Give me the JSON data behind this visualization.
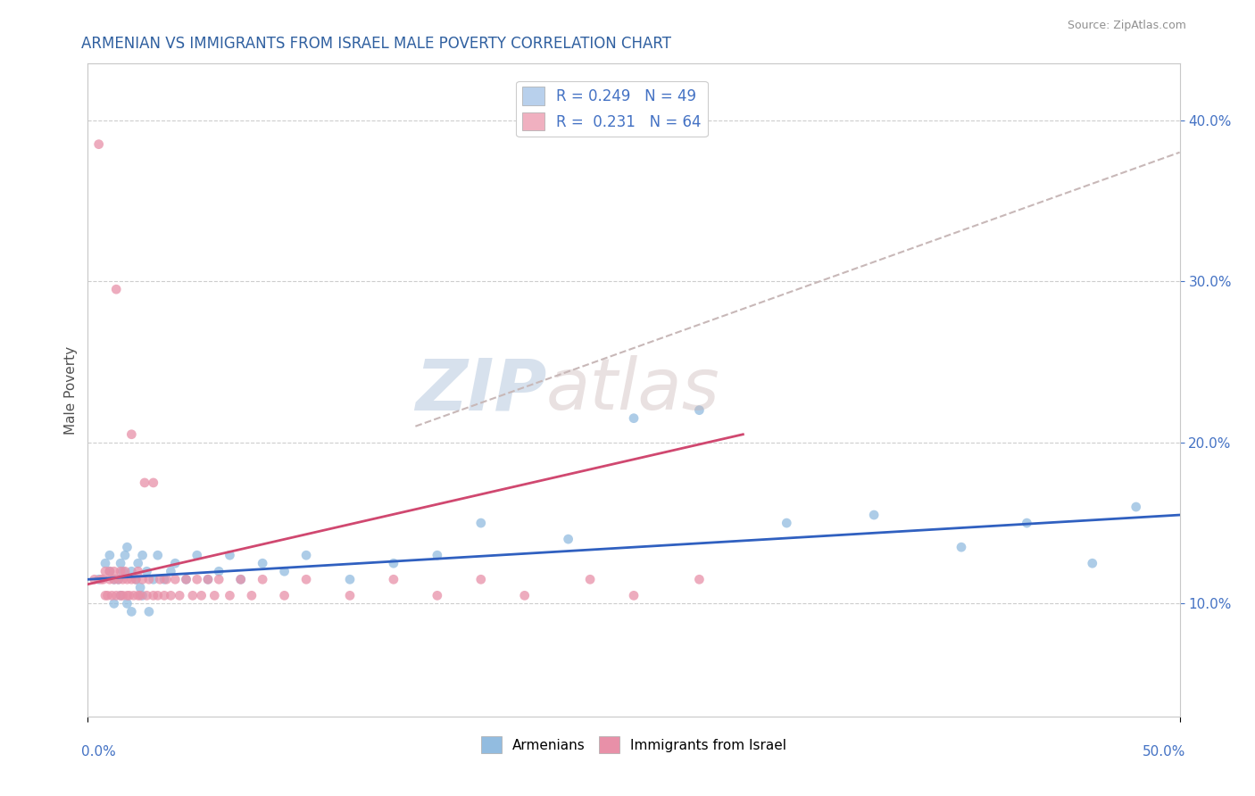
{
  "title": "ARMENIAN VS IMMIGRANTS FROM ISRAEL MALE POVERTY CORRELATION CHART",
  "source": "Source: ZipAtlas.com",
  "ylabel": "Male Poverty",
  "xmin": 0.0,
  "xmax": 0.5,
  "ymin": 0.03,
  "ymax": 0.435,
  "yticks": [
    0.1,
    0.2,
    0.3,
    0.4
  ],
  "legend_label_armenians": "Armenians",
  "legend_label_israel": "Immigrants from Israel",
  "scatter_armenians_color": "#92bce0",
  "scatter_israel_color": "#e890a8",
  "trendline_armenians_color": "#3060c0",
  "trendline_israel_color": "#d04870",
  "trendline_dashed_color": "#c8b8b8",
  "grid_color": "#c8c8c8",
  "background_color": "#ffffff",
  "title_color": "#3060a0",
  "legend_box_color_armenians": "#b8d0ec",
  "legend_box_color_israel": "#f0b0c0",
  "armenians_x": [
    0.005,
    0.008,
    0.01,
    0.01,
    0.012,
    0.012,
    0.014,
    0.015,
    0.015,
    0.016,
    0.017,
    0.018,
    0.018,
    0.02,
    0.02,
    0.022,
    0.023,
    0.024,
    0.025,
    0.025,
    0.027,
    0.028,
    0.03,
    0.032,
    0.035,
    0.038,
    0.04,
    0.045,
    0.05,
    0.055,
    0.06,
    0.065,
    0.07,
    0.08,
    0.09,
    0.1,
    0.12,
    0.14,
    0.16,
    0.18,
    0.22,
    0.25,
    0.28,
    0.32,
    0.36,
    0.4,
    0.43,
    0.46,
    0.48
  ],
  "armenians_y": [
    0.115,
    0.125,
    0.12,
    0.13,
    0.115,
    0.1,
    0.115,
    0.105,
    0.125,
    0.12,
    0.13,
    0.1,
    0.135,
    0.12,
    0.095,
    0.115,
    0.125,
    0.11,
    0.105,
    0.13,
    0.12,
    0.095,
    0.115,
    0.13,
    0.115,
    0.12,
    0.125,
    0.115,
    0.13,
    0.115,
    0.12,
    0.13,
    0.115,
    0.125,
    0.12,
    0.13,
    0.115,
    0.125,
    0.13,
    0.15,
    0.14,
    0.215,
    0.22,
    0.15,
    0.155,
    0.135,
    0.15,
    0.125,
    0.16
  ],
  "israel_x": [
    0.003,
    0.005,
    0.006,
    0.007,
    0.008,
    0.008,
    0.009,
    0.01,
    0.01,
    0.011,
    0.012,
    0.012,
    0.013,
    0.013,
    0.014,
    0.015,
    0.015,
    0.016,
    0.016,
    0.017,
    0.018,
    0.018,
    0.019,
    0.02,
    0.02,
    0.021,
    0.022,
    0.023,
    0.023,
    0.024,
    0.025,
    0.026,
    0.027,
    0.028,
    0.03,
    0.03,
    0.032,
    0.033,
    0.035,
    0.036,
    0.038,
    0.04,
    0.042,
    0.045,
    0.048,
    0.05,
    0.052,
    0.055,
    0.058,
    0.06,
    0.065,
    0.07,
    0.075,
    0.08,
    0.09,
    0.1,
    0.12,
    0.14,
    0.16,
    0.18,
    0.2,
    0.23,
    0.25,
    0.28
  ],
  "israel_y": [
    0.115,
    0.385,
    0.115,
    0.115,
    0.105,
    0.12,
    0.105,
    0.115,
    0.12,
    0.105,
    0.115,
    0.12,
    0.105,
    0.295,
    0.115,
    0.105,
    0.12,
    0.105,
    0.115,
    0.12,
    0.105,
    0.115,
    0.105,
    0.115,
    0.205,
    0.105,
    0.115,
    0.105,
    0.12,
    0.105,
    0.115,
    0.175,
    0.105,
    0.115,
    0.105,
    0.175,
    0.105,
    0.115,
    0.105,
    0.115,
    0.105,
    0.115,
    0.105,
    0.115,
    0.105,
    0.115,
    0.105,
    0.115,
    0.105,
    0.115,
    0.105,
    0.115,
    0.105,
    0.115,
    0.105,
    0.115,
    0.105,
    0.115,
    0.105,
    0.115,
    0.105,
    0.115,
    0.105,
    0.115
  ]
}
